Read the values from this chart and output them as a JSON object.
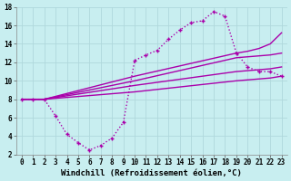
{
  "xlabel": "Windchill (Refroidissement éolien,°C)",
  "background_color": "#c8eef0",
  "grid_color": "#b0d8dc",
  "line_color": "#aa00aa",
  "xlim": [
    -0.5,
    23.5
  ],
  "ylim": [
    2,
    18
  ],
  "xticks": [
    0,
    1,
    2,
    3,
    4,
    5,
    6,
    7,
    8,
    9,
    10,
    11,
    12,
    13,
    14,
    15,
    16,
    17,
    18,
    19,
    20,
    21,
    22,
    23
  ],
  "yticks": [
    2,
    4,
    6,
    8,
    10,
    12,
    14,
    16,
    18
  ],
  "series": [
    {
      "x": [
        0,
        1,
        2,
        3,
        4,
        5,
        6,
        7,
        8,
        9,
        10,
        11,
        12,
        13,
        14,
        15,
        16,
        17,
        18,
        19,
        20,
        21,
        22,
        23
      ],
      "y": [
        8,
        8,
        8,
        6.2,
        4.2,
        3.3,
        2.5,
        3.0,
        3.8,
        5.5,
        12.2,
        12.8,
        13.3,
        14.5,
        15.5,
        16.3,
        16.5,
        17.5,
        17.0,
        13.0,
        11.5,
        11.0,
        11.0,
        10.5
      ],
      "marker": "+",
      "linestyle": "dotted",
      "linewidth": 1.0
    },
    {
      "x": [
        0,
        2,
        10,
        19,
        20,
        21,
        22,
        23
      ],
      "y": [
        8,
        8,
        10.5,
        13.0,
        13.2,
        13.5,
        14.0,
        15.2
      ],
      "marker": "None",
      "linestyle": "solid",
      "linewidth": 1.0
    },
    {
      "x": [
        0,
        2,
        10,
        19,
        20,
        21,
        22,
        23
      ],
      "y": [
        8,
        8,
        10.0,
        12.5,
        12.6,
        12.7,
        12.8,
        13.0
      ],
      "marker": "None",
      "linestyle": "solid",
      "linewidth": 1.0
    },
    {
      "x": [
        0,
        2,
        10,
        19,
        20,
        21,
        22,
        23
      ],
      "y": [
        8,
        8,
        9.5,
        11.0,
        11.1,
        11.2,
        11.3,
        11.5
      ],
      "marker": "None",
      "linestyle": "solid",
      "linewidth": 1.0
    },
    {
      "x": [
        0,
        2,
        10,
        19,
        20,
        21,
        22,
        23
      ],
      "y": [
        8,
        8,
        8.8,
        10.0,
        10.1,
        10.2,
        10.3,
        10.5
      ],
      "marker": "None",
      "linestyle": "solid",
      "linewidth": 1.0
    }
  ],
  "tick_fontsize": 5.5,
  "xlabel_fontsize": 6.5
}
